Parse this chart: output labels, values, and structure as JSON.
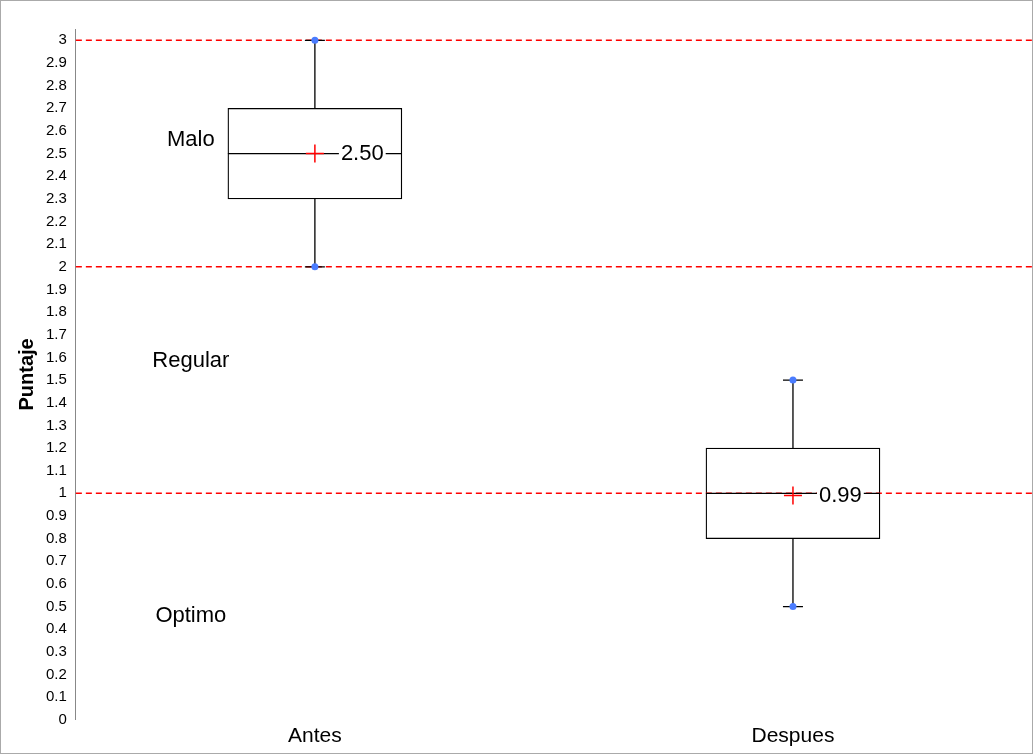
{
  "chart_data": {
    "type": "box",
    "ylabel": "Puntaje",
    "categories": [
      "Antes",
      "Despues"
    ],
    "boxes": [
      {
        "low": 2,
        "q1": 2.3,
        "median": 2.5,
        "q3": 2.7,
        "high": 3,
        "mean": 2.5
      },
      {
        "low": 0.5,
        "q1": 0.8,
        "median": 1,
        "q3": 1.2,
        "high": 1.5,
        "mean": 0.99
      }
    ],
    "series": [
      {
        "type": "scatter",
        "color": "#4a7cff",
        "x": [
          "Antes",
          "Antes",
          "Despues",
          "Despues"
        ],
        "values": [
          2,
          3,
          0.5,
          1.5
        ]
      }
    ],
    "marker": "circle",
    "ylim": [
      0,
      3.05
    ],
    "yticks": [
      0,
      0.1,
      0.2,
      0.3,
      0.4,
      0.5,
      0.6,
      0.7,
      0.8,
      0.9,
      1,
      1.1,
      1.2,
      1.3,
      1.4,
      1.5,
      1.6,
      1.7,
      1.8,
      1.9,
      2,
      2.1,
      2.2,
      2.3,
      2.4,
      2.5,
      2.6,
      2.7,
      2.8,
      2.9,
      3
    ],
    "ref_lines": [
      {
        "axis": "y",
        "value": 3,
        "color": "#ff0000",
        "line_style": "dashed"
      },
      {
        "axis": "y",
        "value": 2,
        "color": "#ff0000",
        "line_style": "dashed"
      },
      {
        "axis": "y",
        "value": 1,
        "color": "#ff0000",
        "line_style": "dashed"
      }
    ],
    "annotations": [
      "Malo",
      "Regular",
      "Optimo",
      {
        "text": "2.50",
        "x": "Antes",
        "y": 2.5
      },
      {
        "text": "0.99",
        "x": "Despues",
        "y": 0.99
      }
    ],
    "grid": false,
    "legend": false
  }
}
